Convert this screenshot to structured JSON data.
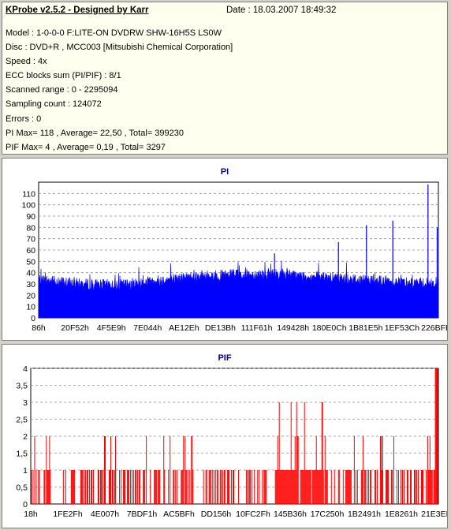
{
  "header": {
    "title": "KProbe v2.5.2 - Designed by Karr",
    "date": "Date : 18.03.2007 18:49:32"
  },
  "info": [
    "Model : 1-0-0-0 F:LITE-ON DVDRW SHW-16H5S  LS0W",
    "Disc : DVD+R , MCC003 [Mitsubishi Chemical Corporation]",
    "Speed : 4x",
    "ECC blocks sum (PI/PIF) : 8/1",
    "Scanned range : 0 - 2295094",
    "Sampling count : 124072",
    "Errors : 0",
    "PI Max= 118 , Average= 22,50 , Total= 399230",
    "PIF Max= 4 , Average= 0,19 , Total= 3297"
  ],
  "chart_data": [
    {
      "type": "area",
      "title": "PI",
      "color": "#0000ff",
      "ylim": [
        0,
        120
      ],
      "yticks": [
        "0",
        "10",
        "20",
        "30",
        "40",
        "50",
        "60",
        "70",
        "80",
        "90",
        "100",
        "110"
      ],
      "xticks": [
        "86h",
        "20F52h",
        "4F5E9h",
        "7E044h",
        "AE12Eh",
        "DE13Bh",
        "111F61h",
        "149428h",
        "180E0Ch",
        "1B81E5h",
        "1EF53Ch",
        "226BFEh"
      ],
      "grid": true,
      "baseline_profile": [
        [
          0,
          34
        ],
        [
          0.1,
          30
        ],
        [
          0.2,
          29
        ],
        [
          0.3,
          33
        ],
        [
          0.4,
          37
        ],
        [
          0.5,
          38
        ],
        [
          0.6,
          39
        ],
        [
          0.65,
          37
        ],
        [
          0.7,
          36
        ],
        [
          0.8,
          34
        ],
        [
          0.9,
          32
        ],
        [
          1.0,
          30
        ]
      ],
      "spikes": [
        [
          0.59,
          57
        ],
        [
          0.75,
          67
        ],
        [
          0.82,
          82
        ],
        [
          0.886,
          86
        ],
        [
          0.974,
          118
        ],
        [
          0.997,
          80
        ]
      ]
    },
    {
      "type": "bar",
      "title": "PIF",
      "color": "#ff0000",
      "ylim": [
        0,
        4
      ],
      "yticks": [
        "0",
        "0,5",
        "1",
        "1,5",
        "2",
        "2,5",
        "3",
        "3,5",
        "4"
      ],
      "xticks": [
        "18h",
        "1FE2Fh",
        "4E007h",
        "7BDF1h",
        "AC5BFh",
        "DD156h",
        "10FC2Fh",
        "145B36h",
        "17C250h",
        "1B2491h",
        "1E8261h",
        "21E3EFh"
      ],
      "grid": true,
      "clusters": [
        {
          "range": [
            0.0,
            0.05
          ],
          "levels": [
            1,
            2
          ]
        },
        {
          "range": [
            0.08,
            0.4
          ],
          "levels": [
            1,
            2
          ]
        },
        {
          "range": [
            0.42,
            0.5
          ],
          "levels": [
            1
          ]
        },
        {
          "range": [
            0.5,
            0.58
          ],
          "levels": [
            1,
            2
          ]
        },
        {
          "range": [
            0.6,
            0.72
          ],
          "levels": [
            1,
            2,
            3
          ]
        },
        {
          "range": [
            0.72,
            0.85
          ],
          "levels": [
            1,
            2
          ]
        },
        {
          "range": [
            0.85,
            0.97
          ],
          "levels": [
            1,
            2
          ]
        },
        {
          "range": [
            0.97,
            1.0
          ],
          "levels": [
            1,
            2,
            3,
            4
          ]
        }
      ]
    }
  ]
}
